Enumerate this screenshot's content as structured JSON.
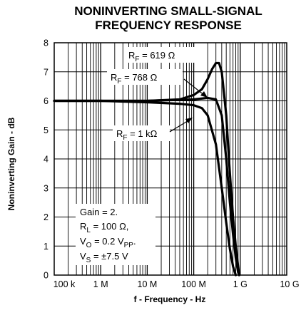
{
  "chart_data": {
    "type": "line",
    "title": [
      "NONINVERTING SMALL-SIGNAL",
      "FREQUENCY RESPONSE"
    ],
    "xlabel": "f - Frequency - Hz",
    "ylabel": "Noninverting Gain - dB",
    "x_scale": "log",
    "xlim": [
      100000,
      10000000000
    ],
    "ylim": [
      0,
      8
    ],
    "grid": "log-minor on x, major on y",
    "x_tick_labels": [
      {
        "value": 100000,
        "label": "100 k"
      },
      {
        "value": 1000000,
        "label": "1 M"
      },
      {
        "value": 10000000,
        "label": "10 M"
      },
      {
        "value": 100000000,
        "label": "100 M"
      },
      {
        "value": 1000000000,
        "label": "1 G"
      },
      {
        "value": 10000000000,
        "label": "10 G"
      }
    ],
    "y_tick_labels": [
      "0",
      "1",
      "2",
      "3",
      "4",
      "5",
      "6",
      "7",
      "8"
    ],
    "series": [
      {
        "name": "R_F = 619 Ω",
        "points": [
          [
            100000,
            6.0
          ],
          [
            1000000,
            6.0
          ],
          [
            10000000,
            6.0
          ],
          [
            50000000,
            6.05
          ],
          [
            100000000,
            6.2
          ],
          [
            150000000,
            6.4
          ],
          [
            200000000,
            6.75
          ],
          [
            250000000,
            7.1
          ],
          [
            300000000,
            7.3
          ],
          [
            350000000,
            7.3
          ],
          [
            400000000,
            7.0
          ],
          [
            500000000,
            5.5
          ],
          [
            600000000,
            3.5
          ],
          [
            700000000,
            2.0
          ],
          [
            800000000,
            1.0
          ],
          [
            900000000,
            0.3
          ],
          [
            950000000,
            0.0
          ]
        ]
      },
      {
        "name": "R_F = 768 Ω",
        "points": [
          [
            100000,
            6.0
          ],
          [
            1000000,
            6.0
          ],
          [
            10000000,
            6.0
          ],
          [
            100000000,
            6.05
          ],
          [
            200000000,
            6.1
          ],
          [
            300000000,
            6.05
          ],
          [
            400000000,
            5.5
          ],
          [
            500000000,
            4.0
          ],
          [
            600000000,
            2.5
          ],
          [
            700000000,
            1.4
          ],
          [
            800000000,
            0.6
          ],
          [
            900000000,
            0.1
          ],
          [
            950000000,
            0.0
          ]
        ]
      },
      {
        "name": "R_F = 1 kΩ",
        "points": [
          [
            100000,
            6.0
          ],
          [
            1000000,
            6.0
          ],
          [
            10000000,
            5.95
          ],
          [
            50000000,
            5.9
          ],
          [
            100000000,
            5.85
          ],
          [
            150000000,
            5.75
          ],
          [
            200000000,
            5.5
          ],
          [
            300000000,
            4.5
          ],
          [
            400000000,
            3.0
          ],
          [
            500000000,
            1.8
          ],
          [
            600000000,
            0.9
          ],
          [
            700000000,
            0.3
          ],
          [
            800000000,
            0.0
          ]
        ]
      }
    ],
    "series_labels": [
      {
        "text": "R",
        "sub": "F",
        "rest": " = 619 Ω"
      },
      {
        "text": "R",
        "sub": "F",
        "rest": " = 768 Ω"
      },
      {
        "text": "R",
        "sub": "F",
        "rest": " = 1 kΩ"
      }
    ],
    "annotation_lines": [
      {
        "text": "Gain = 2.",
        "sub": "",
        "rest": ""
      },
      {
        "text": "R",
        "sub": "L",
        "rest": " = 100 Ω,"
      },
      {
        "text": "V",
        "sub": "O",
        "rest": " = 0.2 V",
        "sub2": "PP",
        "rest2": ""
      },
      {
        "text": "V",
        "sub": "S",
        "rest": " = ±7.5 V"
      }
    ]
  }
}
